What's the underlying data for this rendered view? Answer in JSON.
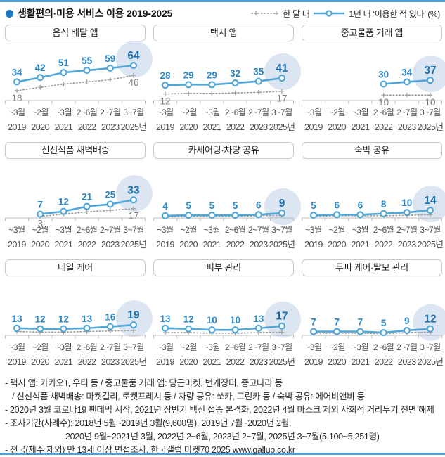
{
  "header": {
    "title": "생활편의·미용 서비스 이용 2019-2025",
    "legend_monthly": "한 달 내",
    "legend_yearly": "1년 내  ‘이용한 적 있다’ (%)"
  },
  "colors": {
    "rule": "#4f9fd8",
    "bullet": "#1a78c2",
    "line": "#4fa6d9",
    "value_label": "#2b86c4",
    "value_label_last": "#1d6fae",
    "dotted": "#9a9a9a",
    "dotted_label": "#7d7d7d",
    "highlight": "#dce6f2",
    "axis": "#bcbcbc",
    "x_label": "#4d4d4d"
  },
  "chart_data": {
    "type": "line",
    "unit": "%",
    "x": {
      "months": [
        "~3월",
        "~2월",
        "~3월",
        "2~6월",
        "2~7월",
        "3~7월"
      ],
      "years": [
        "2019",
        "2020",
        "2021",
        "2022",
        "2023",
        "2025년"
      ]
    },
    "series_names": {
      "solid": "1년 내 이용한 적 있다",
      "dotted": "한 달 내"
    },
    "charts": [
      {
        "id": "food-delivery-app",
        "title": "음식 배달 앱",
        "solid": [
          34,
          42,
          51,
          55,
          59,
          64
        ],
        "dotted": [
          18,
          24,
          30,
          34,
          38,
          46
        ],
        "dotted_labels": [
          18,
          null,
          null,
          null,
          null,
          46
        ]
      },
      {
        "id": "taxi-app",
        "title": "택시 앱",
        "solid": [
          28,
          29,
          29,
          32,
          35,
          41
        ],
        "dotted": [
          12,
          13,
          13,
          14,
          15,
          17
        ],
        "dotted_labels": [
          12,
          null,
          null,
          null,
          null,
          17
        ]
      },
      {
        "id": "secondhand-trade-app",
        "title": "중고물품 거래 앱",
        "solid": [
          null,
          null,
          null,
          30,
          34,
          37
        ],
        "dotted": [
          null,
          null,
          null,
          10,
          10,
          10
        ],
        "dotted_labels": [
          null,
          null,
          null,
          10,
          null,
          10
        ]
      },
      {
        "id": "fresh-food-dawn-delivery",
        "title": "신선식품 새벽배송",
        "solid": [
          null,
          7,
          12,
          21,
          25,
          33
        ],
        "dotted": [
          null,
          3,
          7,
          11,
          14,
          17
        ],
        "dotted_labels": [
          null,
          3,
          null,
          null,
          null,
          17
        ]
      },
      {
        "id": "car-sharing",
        "title": "카셰어링·차량 공유",
        "solid": [
          4,
          5,
          5,
          5,
          6,
          9
        ],
        "dotted": [
          2,
          3,
          3,
          3,
          4,
          5
        ],
        "dotted_labels": [
          null,
          null,
          null,
          null,
          null,
          null
        ]
      },
      {
        "id": "lodging-share",
        "title": "숙박 공유",
        "solid": [
          5,
          6,
          6,
          8,
          10,
          14
        ],
        "dotted": [
          3,
          4,
          4,
          4,
          5,
          6
        ],
        "dotted_labels": [
          null,
          null,
          null,
          null,
          null,
          null
        ]
      },
      {
        "id": "nail-care",
        "title": "네일 케어",
        "solid": [
          13,
          12,
          12,
          13,
          16,
          19
        ],
        "dotted": [
          7,
          6,
          6,
          7,
          8,
          9
        ],
        "dotted_labels": [
          null,
          null,
          null,
          null,
          null,
          null
        ]
      },
      {
        "id": "skin-care",
        "title": "피부 관리",
        "solid": [
          13,
          12,
          10,
          10,
          13,
          17
        ],
        "dotted": [
          5,
          5,
          4,
          4,
          5,
          6
        ],
        "dotted_labels": [
          null,
          null,
          null,
          null,
          null,
          null
        ]
      },
      {
        "id": "scalp-hair-care",
        "title": "두피 케어·탈모 관리",
        "solid": [
          7,
          7,
          7,
          5,
          9,
          12
        ],
        "dotted": [
          4,
          4,
          4,
          3,
          5,
          6
        ],
        "dotted_labels": [
          null,
          null,
          null,
          null,
          null,
          null
        ]
      }
    ]
  },
  "footnotes": [
    {
      "text": "- 택시 앱: 카카오T, 우티 등 / 중고물품 거래 앱: 당근마켓, 번개장터, 중고나라 등",
      "indent": 0
    },
    {
      "text": "/ 신선식품 새벽배송: 마켓컬리, 로켓프레시 등 / 차량 공유: 쏘카, 그린카 등 / 숙박 공유: 에어비앤비 등",
      "indent": 1
    },
    {
      "text": "- 2020년 3월 코로나19 팬데믹 시작, 2021년 상반기 백신 접종 본격화, 2022년 4월 마스크 제외 사회적 거리두기 전면 해제",
      "indent": 0
    },
    {
      "text": "- 조사기간(사례수):  2018년 5월~2019년 3월(9,600명), 2019년 7월~2020년 2월,",
      "indent": 0
    },
    {
      "text": "2020년 9월~2021년 3월, 2022년 2~6월, 2023년 2~7월, 2025년 3~7월(5,100~5,251명)",
      "indent": 2
    },
    {
      "text": "- 전국(제주 제외) 만 13세 이상 면접조사. 한국갤럽 마켓70 2025 www.gallup.co.kr",
      "indent": 0
    }
  ]
}
